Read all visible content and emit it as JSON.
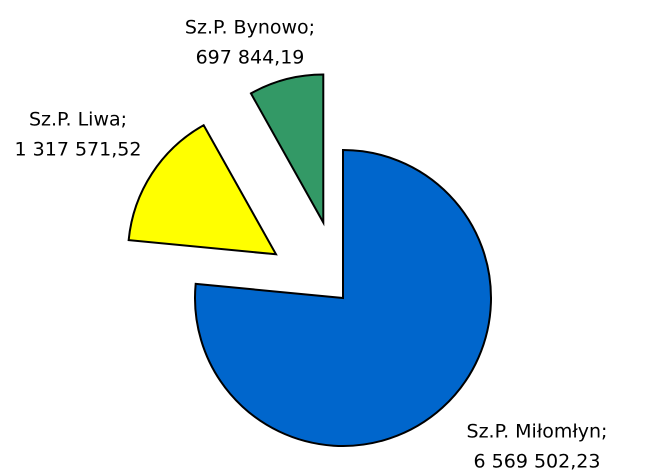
{
  "chart_data": {
    "type": "pie",
    "categories": [
      "Sz.P. Miłomłyn;",
      "Sz.P. Liwa;",
      "Sz.P. Bynowo;"
    ],
    "values": [
      6569502.23,
      1317571.52,
      697844.19
    ],
    "value_labels": [
      "6 569 502,23",
      "1 317 571,52",
      "697 844,19"
    ],
    "colors": [
      "#0066cc",
      "#ffff00",
      "#339966"
    ]
  }
}
